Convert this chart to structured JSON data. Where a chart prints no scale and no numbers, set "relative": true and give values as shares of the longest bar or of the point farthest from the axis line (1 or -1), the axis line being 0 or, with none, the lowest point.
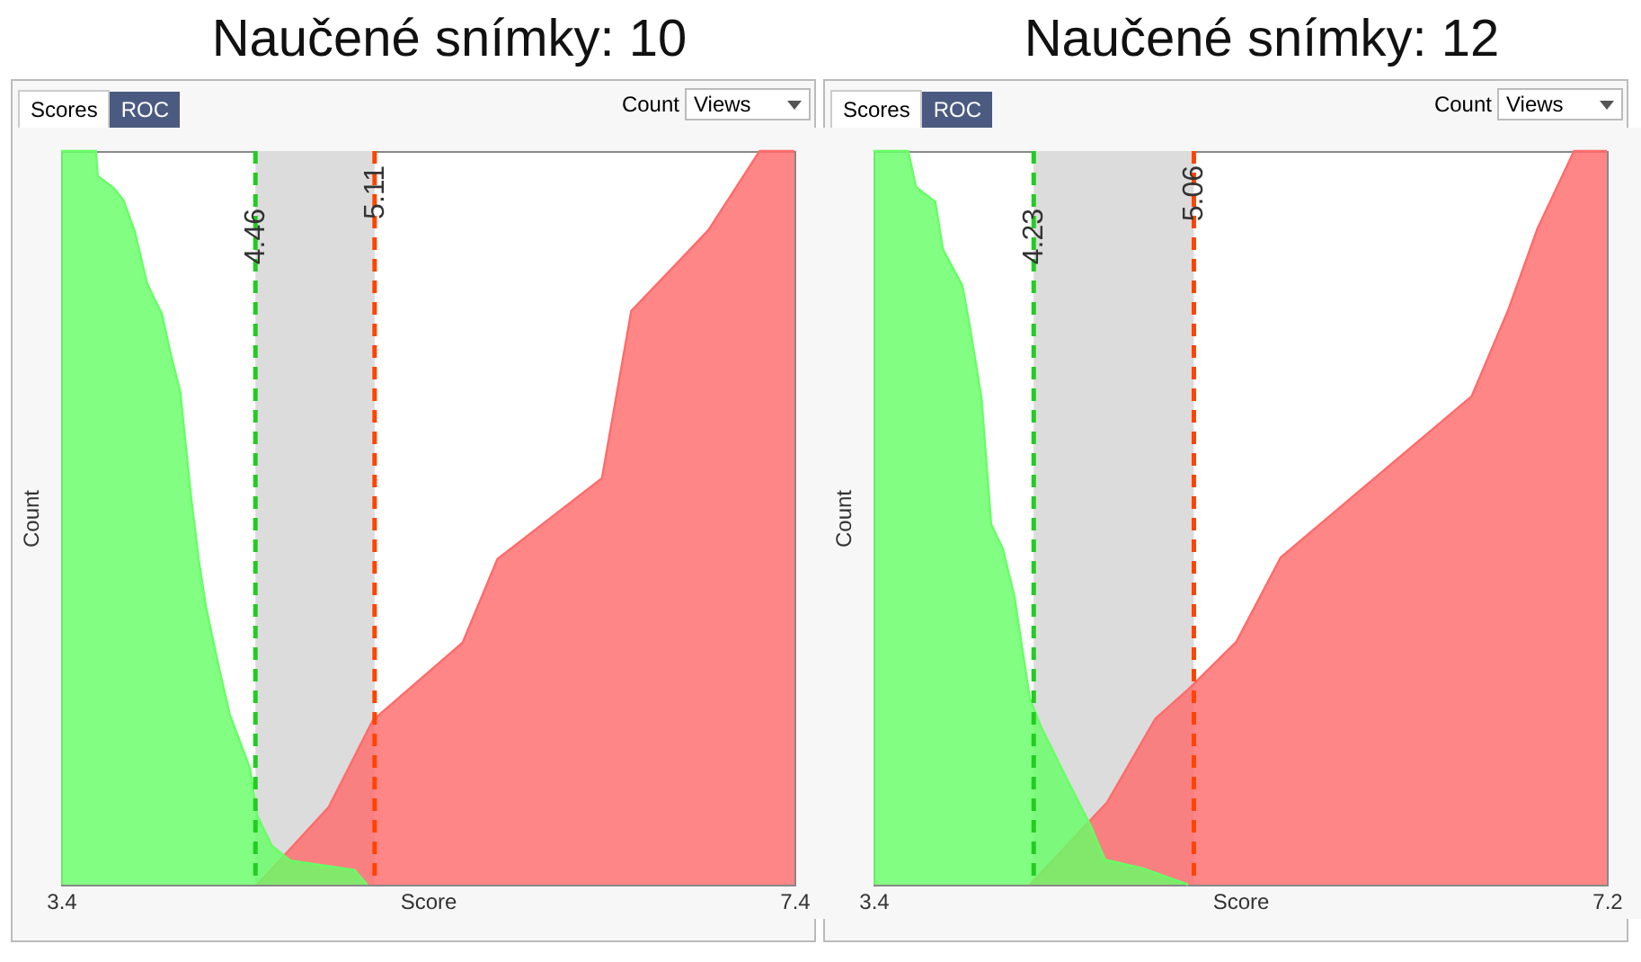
{
  "chart_data": [
    {
      "type": "area",
      "title": "Naučené snímky: 10",
      "xlabel": "Score",
      "ylabel": "Count",
      "relative": true,
      "xlim": [
        3.4,
        7.4
      ],
      "xticks": [
        3.4,
        7.4
      ],
      "annotations": [
        "Scores",
        "ROC",
        "Count",
        "Views"
      ],
      "series": [
        {
          "color": "#ff6b6b",
          "x": [
            4.47,
            4.86,
            5.1,
            5.59,
            5.78,
            6.35,
            6.51,
            6.93,
            7.21,
            7.4
          ],
          "values": [
            0,
            0.106,
            0.224,
            0.33,
            0.444,
            0.554,
            0.782,
            0.892,
            1,
            1
          ]
        },
        {
          "color": "#66ff66",
          "x": [
            3.4,
            3.59,
            3.6,
            3.69,
            3.74,
            3.8,
            3.87,
            3.95,
            4.0,
            4.05,
            4.11,
            4.15,
            4.19,
            4.26,
            4.32,
            4.43,
            4.47,
            4.55,
            4.65,
            5.0,
            5.07
          ],
          "values": [
            1,
            1,
            0.966,
            0.949,
            0.933,
            0.892,
            0.819,
            0.778,
            0.721,
            0.672,
            0.526,
            0.444,
            0.379,
            0.297,
            0.232,
            0.159,
            0.094,
            0.053,
            0.033,
            0.02,
            0
          ]
        }
      ],
      "bands": [
        {
          "axis": "x",
          "from": 4.46,
          "to": 5.11,
          "color": "#dcdcdc"
        }
      ],
      "ref_lines": [
        {
          "axis": "x",
          "value": 4.46,
          "label": "4.46",
          "color": "#22cc22",
          "line_style": "dashed"
        },
        {
          "axis": "x",
          "value": 5.11,
          "label": "5.11",
          "color": "#ff4400",
          "line_style": "dashed"
        }
      ]
    },
    {
      "type": "area",
      "title": "Naučené snímky: 12",
      "xlabel": "Score",
      "ylabel": "Count",
      "relative": true,
      "xlim": [
        3.4,
        7.2
      ],
      "xticks": [
        3.4,
        7.2
      ],
      "annotations": [
        "Scores",
        "ROC",
        "Count",
        "Views"
      ],
      "series": [
        {
          "color": "#ff6b6b",
          "x": [
            4.21,
            4.61,
            4.86,
            5.03,
            5.28,
            5.51,
            6.5,
            6.69,
            6.84,
            7.03,
            7.2
          ],
          "values": [
            0,
            0.112,
            0.226,
            0.266,
            0.331,
            0.446,
            0.666,
            0.784,
            0.894,
            1,
            1
          ]
        },
        {
          "color": "#66ff66",
          "x": [
            3.4,
            3.58,
            3.62,
            3.72,
            3.76,
            3.86,
            3.9,
            3.96,
            4.01,
            4.07,
            4.13,
            4.21,
            4.27,
            4.41,
            4.52,
            4.6,
            4.8,
            5.03
          ],
          "values": [
            1,
            1,
            0.951,
            0.931,
            0.866,
            0.817,
            0.76,
            0.662,
            0.491,
            0.458,
            0.393,
            0.254,
            0.214,
            0.14,
            0.083,
            0.034,
            0.022,
            0
          ]
        }
      ],
      "bands": [
        {
          "axis": "x",
          "from": 4.23,
          "to": 5.06,
          "color": "#dcdcdc"
        }
      ],
      "ref_lines": [
        {
          "axis": "x",
          "value": 4.23,
          "label": "4.23",
          "color": "#22cc22",
          "line_style": "dashed"
        },
        {
          "axis": "x",
          "value": 5.06,
          "label": "5.06",
          "color": "#ff4400",
          "line_style": "dashed"
        }
      ]
    }
  ]
}
